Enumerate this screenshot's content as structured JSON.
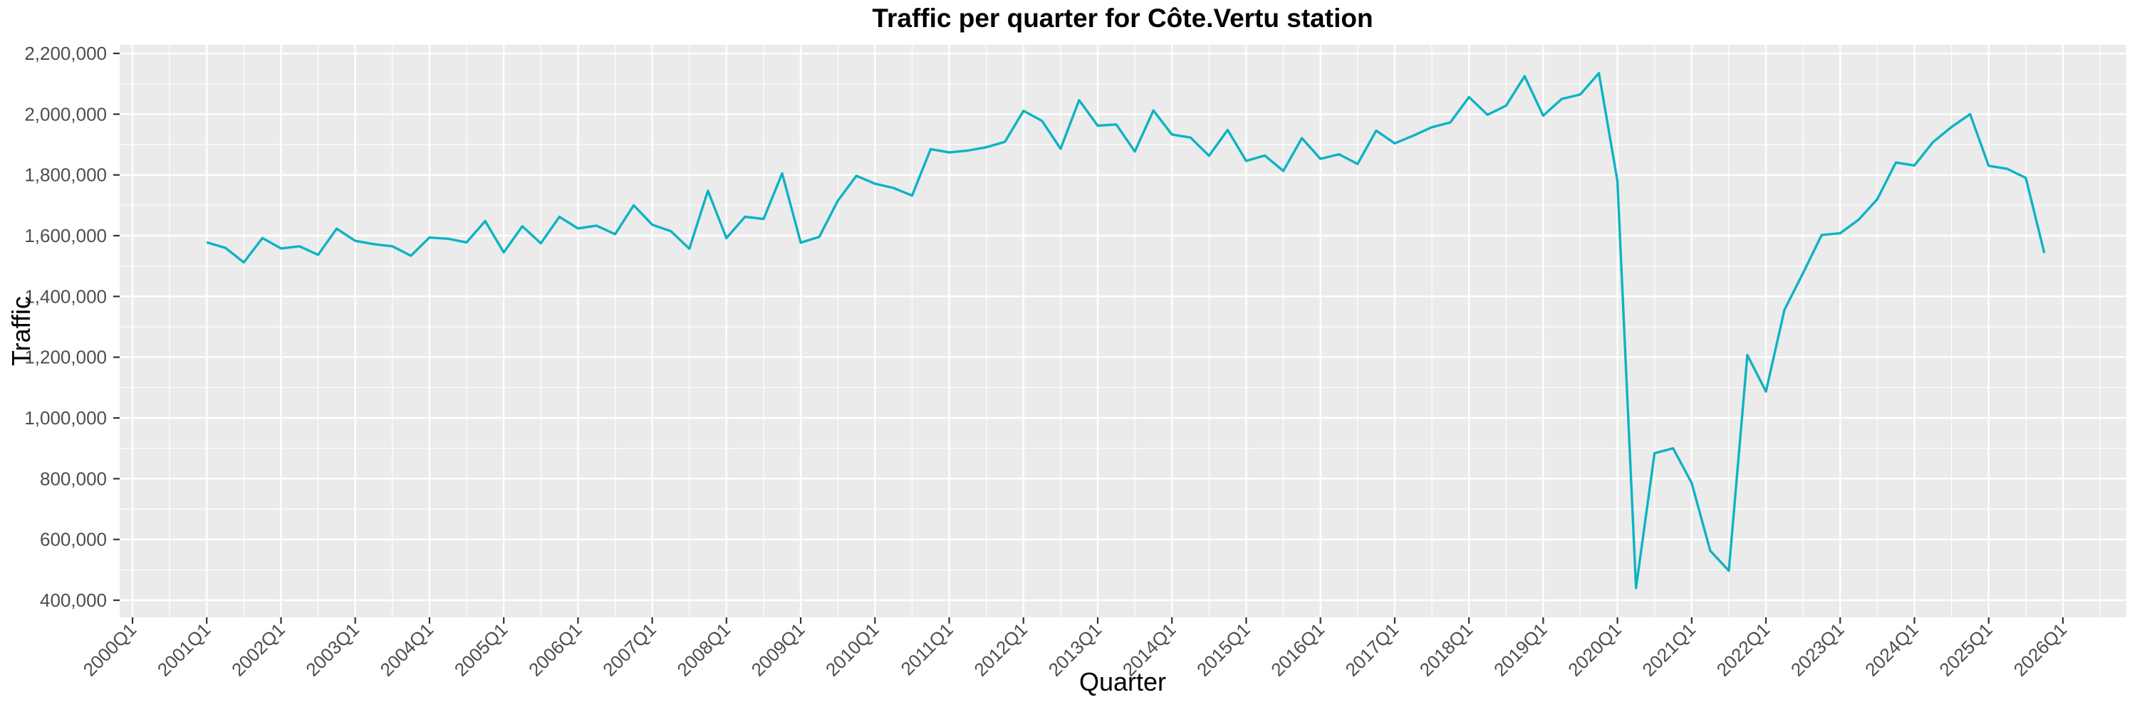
{
  "title": "Traffic per quarter for Côte.Vertu station",
  "chart_data": {
    "type": "line",
    "title": "Traffic per quarter for Côte.Vertu station",
    "xlabel": "Quarter",
    "ylabel": "Traffic",
    "legend": "none",
    "grid": "major-and-minor-white-on-grey-panel",
    "ylim": [
      400000,
      2200000
    ],
    "y_tick_step": 200000,
    "y_minor_step": 100000,
    "x_minor_step_years": 0.5,
    "y_tick_labels": [
      "400,000",
      "600,000",
      "800,000",
      "1,000,000",
      "1,200,000",
      "1,400,000",
      "1,600,000",
      "1,800,000",
      "2,000,000",
      "2,200,000"
    ],
    "x_tick_labels": [
      "2000Q1",
      "2001Q1",
      "2002Q1",
      "2003Q1",
      "2004Q1",
      "2005Q1",
      "2006Q1",
      "2007Q1",
      "2008Q1",
      "2009Q1",
      "2010Q1",
      "2011Q1",
      "2012Q1",
      "2013Q1",
      "2014Q1",
      "2015Q1",
      "2016Q1",
      "2017Q1",
      "2018Q1",
      "2019Q1",
      "2020Q1",
      "2021Q1",
      "2022Q1",
      "2023Q1",
      "2024Q1",
      "2025Q1",
      "2026Q1"
    ],
    "series": [
      {
        "name": "traffic",
        "color": "#0db3c4",
        "x": [
          "2001Q1",
          "2001Q2",
          "2001Q3",
          "2001Q4",
          "2002Q1",
          "2002Q2",
          "2002Q3",
          "2002Q4",
          "2003Q1",
          "2003Q2",
          "2003Q3",
          "2003Q4",
          "2004Q1",
          "2004Q2",
          "2004Q3",
          "2004Q4",
          "2005Q1",
          "2005Q2",
          "2005Q3",
          "2005Q4",
          "2006Q1",
          "2006Q2",
          "2006Q3",
          "2006Q4",
          "2007Q1",
          "2007Q2",
          "2007Q3",
          "2007Q4",
          "2008Q1",
          "2008Q2",
          "2008Q3",
          "2008Q4",
          "2009Q1",
          "2009Q2",
          "2009Q3",
          "2009Q4",
          "2010Q1",
          "2010Q2",
          "2010Q3",
          "2010Q4",
          "2011Q1",
          "2011Q2",
          "2011Q3",
          "2011Q4",
          "2012Q1",
          "2012Q2",
          "2012Q3",
          "2012Q4",
          "2013Q1",
          "2013Q2",
          "2013Q3",
          "2013Q4",
          "2014Q1",
          "2014Q2",
          "2014Q3",
          "2014Q4",
          "2015Q1",
          "2015Q2",
          "2015Q3",
          "2015Q4",
          "2016Q1",
          "2016Q2",
          "2016Q3",
          "2016Q4",
          "2017Q1",
          "2017Q2",
          "2017Q3",
          "2017Q4",
          "2018Q1",
          "2018Q2",
          "2018Q3",
          "2018Q4",
          "2019Q1",
          "2019Q2",
          "2019Q3",
          "2019Q4",
          "2020Q1",
          "2020Q2",
          "2020Q3",
          "2020Q4",
          "2021Q1",
          "2021Q2",
          "2021Q3",
          "2021Q4",
          "2022Q1",
          "2022Q2",
          "2022Q3",
          "2022Q4",
          "2023Q1",
          "2023Q2",
          "2023Q3",
          "2023Q4",
          "2024Q1",
          "2024Q2",
          "2024Q3",
          "2024Q4",
          "2025Q1",
          "2025Q2",
          "2025Q3",
          "2025Q4"
        ],
        "values": [
          1578000,
          1560000,
          1512000,
          1592000,
          1558000,
          1565000,
          1537000,
          1623000,
          1583000,
          1572000,
          1565000,
          1534000,
          1594000,
          1590000,
          1578000,
          1648000,
          1545000,
          1631000,
          1575000,
          1662000,
          1624000,
          1633000,
          1605000,
          1700000,
          1636000,
          1615000,
          1557000,
          1748000,
          1592000,
          1662000,
          1655000,
          1805000,
          1577000,
          1596000,
          1715000,
          1797000,
          1771000,
          1757000,
          1732000,
          1885000,
          1874000,
          1880000,
          1891000,
          1909000,
          2011000,
          1978000,
          1886000,
          2046000,
          1962000,
          1966000,
          1877000,
          2012000,
          1933000,
          1923000,
          1863000,
          1948000,
          1846000,
          1864000,
          1813000,
          1921000,
          1853000,
          1868000,
          1836000,
          1946000,
          1904000,
          1929000,
          1957000,
          1973000,
          2056000,
          1998000,
          2028000,
          2125000,
          1995000,
          2050000,
          2065000,
          2135000,
          1780000,
          440000,
          884000,
          900000,
          786000,
          563000,
          497000,
          1207000,
          1087000,
          1356000,
          1477000,
          1602000,
          1608000,
          1653000,
          1720000,
          1841000,
          1831000,
          1908000,
          1958000,
          2000000,
          1830000,
          1820000,
          1790000,
          1543000
        ]
      }
    ],
    "style": {
      "panel_background": "#ebebeb",
      "grid_color": "#ffffff",
      "tick_label_color": "#4d4d4d",
      "tick_mark_color": "#333333",
      "text_color": "#000000",
      "line_color": "#0db3c4"
    }
  }
}
